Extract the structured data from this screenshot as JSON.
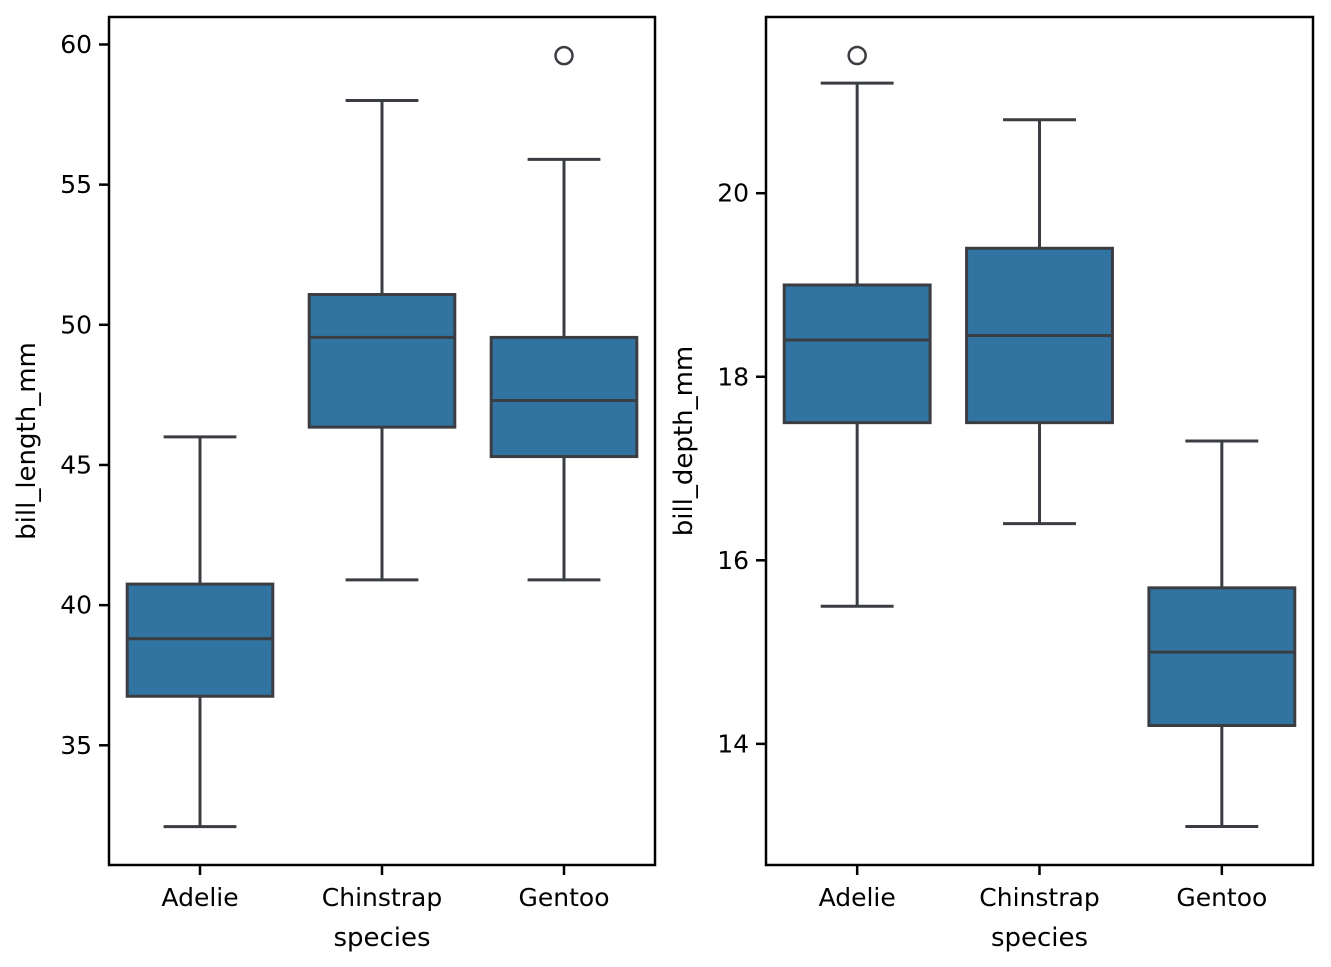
{
  "figure": {
    "background": "#ffffff",
    "box_fill": "#3274a1",
    "line_color": "#3a3d42",
    "spine_color": "#000000",
    "text_color": "#000000"
  },
  "chart_data": [
    {
      "type": "box",
      "title": "",
      "xlabel": "species",
      "ylabel": "bill_length_mm",
      "categories": [
        "Adelie",
        "Chinstrap",
        "Gentoo"
      ],
      "yticks": [
        35,
        40,
        45,
        50,
        55,
        60
      ],
      "ylim": [
        30.73,
        60.98
      ],
      "grid": false,
      "legend": "none",
      "series": [
        {
          "name": "Adelie",
          "whisker_low": 32.1,
          "q1": 36.75,
          "median": 38.8,
          "q3": 40.75,
          "whisker_high": 46.0,
          "outliers": []
        },
        {
          "name": "Chinstrap",
          "whisker_low": 40.9,
          "q1": 46.35,
          "median": 49.55,
          "q3": 51.08,
          "whisker_high": 58.0,
          "outliers": []
        },
        {
          "name": "Gentoo",
          "whisker_low": 40.9,
          "q1": 45.3,
          "median": 47.3,
          "q3": 49.55,
          "whisker_high": 55.9,
          "outliers": [
            59.6
          ]
        }
      ]
    },
    {
      "type": "box",
      "title": "",
      "xlabel": "species",
      "ylabel": "bill_depth_mm",
      "categories": [
        "Adelie",
        "Chinstrap",
        "Gentoo"
      ],
      "yticks": [
        14,
        16,
        18,
        20
      ],
      "ylim": [
        12.68,
        21.92
      ],
      "grid": false,
      "legend": "none",
      "series": [
        {
          "name": "Adelie",
          "whisker_low": 15.5,
          "q1": 17.5,
          "median": 18.4,
          "q3": 19.0,
          "whisker_high": 21.2,
          "outliers": [
            21.5
          ]
        },
        {
          "name": "Chinstrap",
          "whisker_low": 16.4,
          "q1": 17.5,
          "median": 18.45,
          "q3": 19.4,
          "whisker_high": 20.8,
          "outliers": []
        },
        {
          "name": "Gentoo",
          "whisker_low": 13.1,
          "q1": 14.2,
          "median": 15.0,
          "q3": 15.7,
          "whisker_high": 17.3,
          "outliers": []
        }
      ]
    }
  ]
}
